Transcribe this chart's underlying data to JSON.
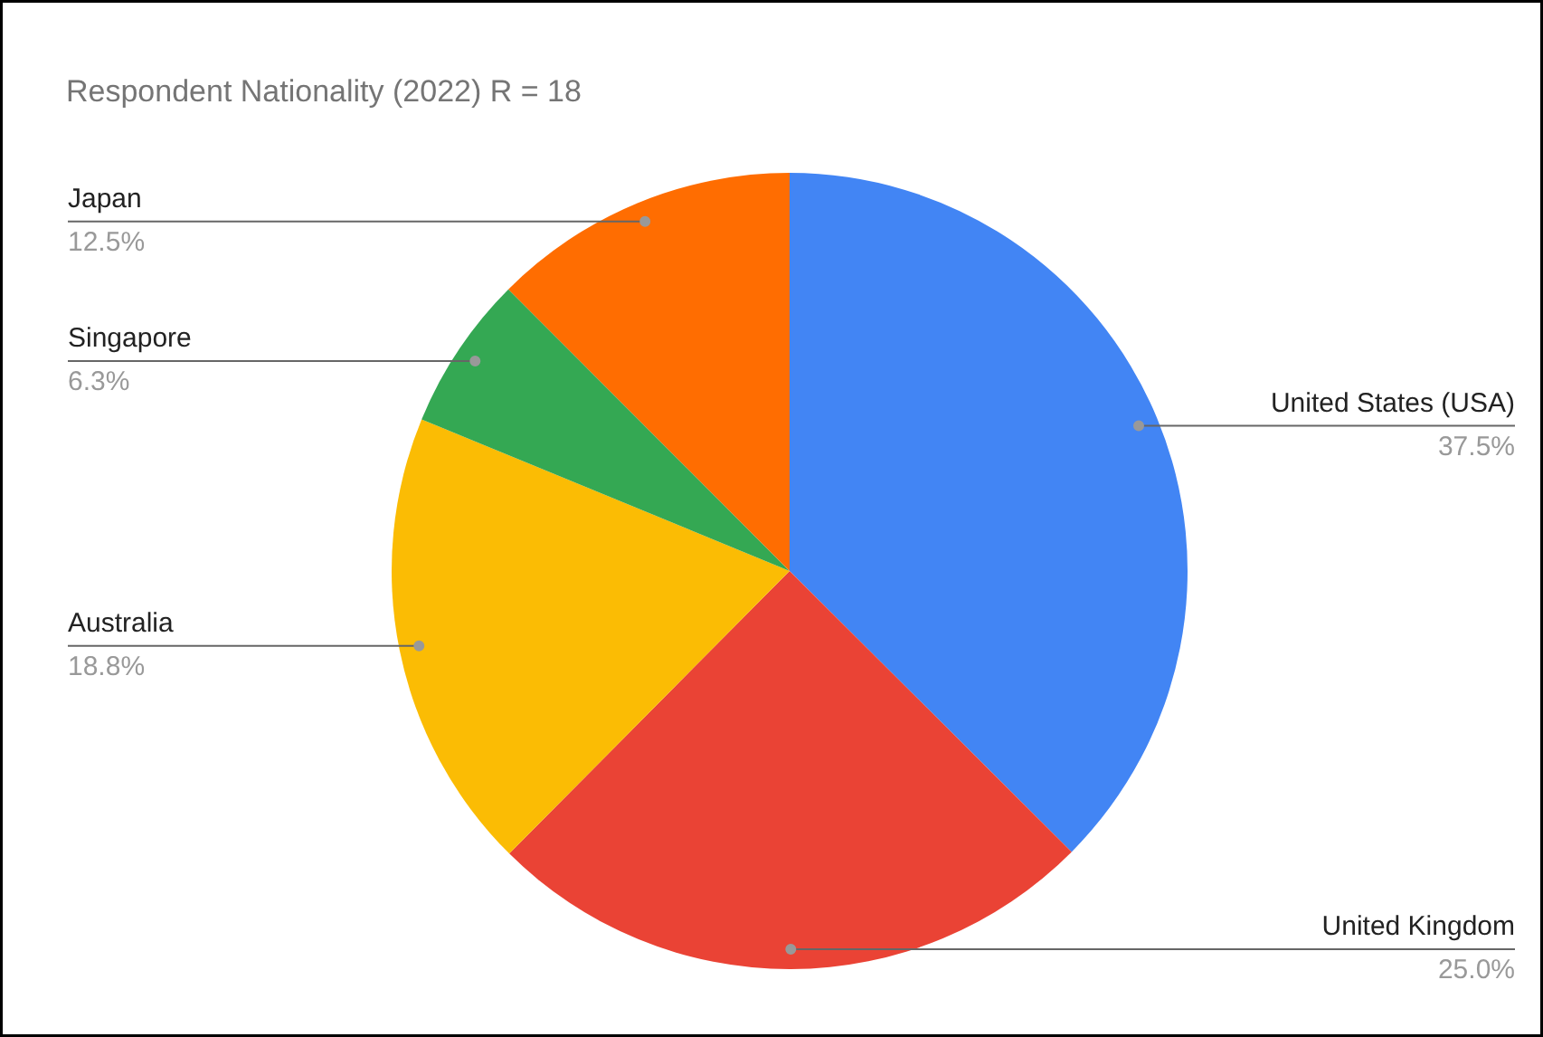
{
  "chart_data": {
    "type": "pie",
    "title": "Respondent Nationality (2022) R = 18",
    "categories": [
      "United States (USA)",
      "United Kingdom",
      "Australia",
      "Singapore",
      "Japan"
    ],
    "values": [
      37.5,
      25.0,
      18.8,
      6.3,
      12.5
    ],
    "colors": [
      "#4285f4",
      "#ea4335",
      "#fbbc04",
      "#34a853",
      "#ff6d01"
    ],
    "value_labels": [
      "37.5%",
      "25.0%",
      "18.8%",
      "6.3%",
      "12.5%"
    ]
  }
}
